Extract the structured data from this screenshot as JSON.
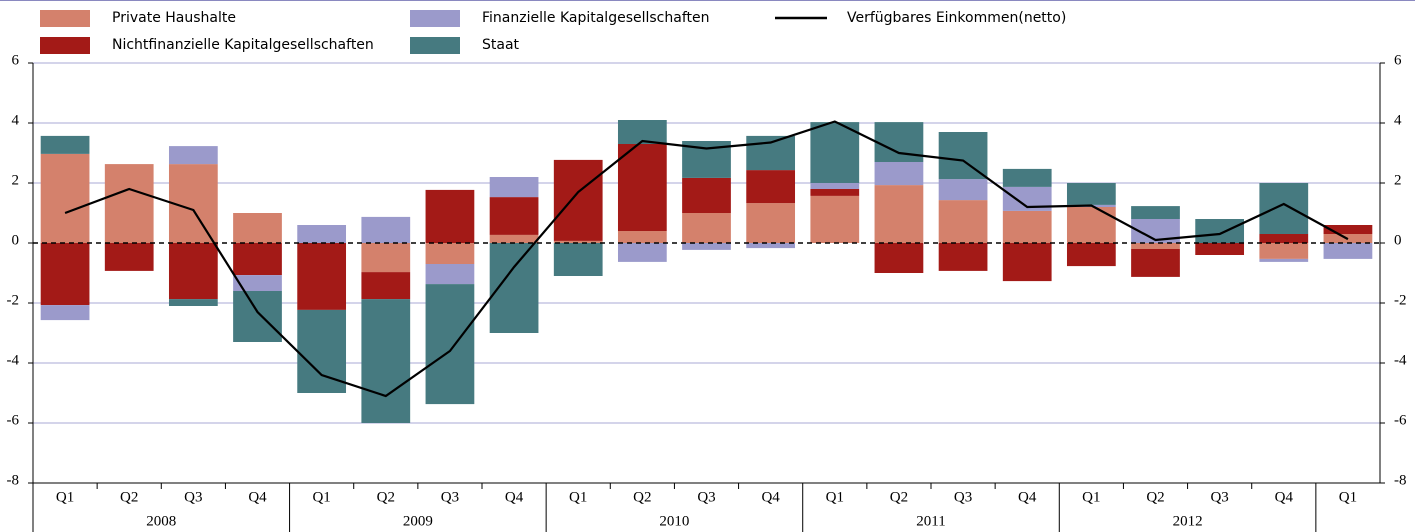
{
  "chart_data": {
    "type": "bar",
    "stacked": true,
    "categories": [
      "Q1",
      "Q2",
      "Q3",
      "Q4",
      "Q1",
      "Q2",
      "Q3",
      "Q4",
      "Q1",
      "Q2",
      "Q3",
      "Q4",
      "Q1",
      "Q2",
      "Q3",
      "Q4",
      "Q1",
      "Q2",
      "Q3",
      "Q4",
      "Q1"
    ],
    "year_groups": [
      "2008",
      "2009",
      "2010",
      "2011",
      "2012"
    ],
    "series": [
      {
        "name": "Private Haushalte",
        "color": "#d4816c",
        "values": [
          2.97,
          2.63,
          2.63,
          1.0,
          0,
          -0.97,
          -0.7,
          0.27,
          0.07,
          0.4,
          1.0,
          1.33,
          1.57,
          1.93,
          1.43,
          1.07,
          1.2,
          -0.2,
          0,
          -0.53,
          0.3
        ]
      },
      {
        "name": "Nichtfinanzielle Kapitalgesellschaften",
        "color": "#a31a17",
        "values": [
          -2.07,
          -0.93,
          -1.87,
          -1.07,
          -2.23,
          -0.9,
          1.77,
          1.26,
          2.7,
          2.9,
          1.17,
          1.1,
          0.23,
          -1.0,
          -0.93,
          -1.27,
          -0.77,
          -0.93,
          -0.4,
          0.3,
          0.3
        ]
      },
      {
        "name": "Finanzielle Kapitalgesellschaften",
        "color": "#9b9acb",
        "values": [
          -0.5,
          0,
          0.6,
          -0.53,
          0.6,
          0.87,
          -0.67,
          0.67,
          0,
          -0.63,
          -0.23,
          -0.17,
          0.2,
          0.77,
          0.7,
          0.8,
          0.07,
          0.8,
          0,
          -0.1,
          -0.53
        ]
      },
      {
        "name": "Staat",
        "color": "#467a80",
        "values": [
          0.6,
          0,
          -0.23,
          -1.7,
          -2.77,
          -4.13,
          -4.0,
          -3.0,
          -1.1,
          0.8,
          1.23,
          1.14,
          2.03,
          1.33,
          1.57,
          0.6,
          0.73,
          0.43,
          0.8,
          1.7,
          0
        ]
      },
      {
        "name": "Verfügbares Einkommen(netto)",
        "type": "line",
        "color": "#000000",
        "values": [
          1.0,
          1.8,
          1.1,
          -2.3,
          -4.4,
          -5.1,
          -3.6,
          -0.8,
          1.7,
          3.4,
          3.15,
          3.35,
          4.05,
          3.0,
          2.75,
          1.2,
          1.25,
          0.1,
          0.3,
          1.3,
          0.13
        ]
      }
    ],
    "ylim": [
      -8,
      6
    ],
    "yticks": [
      -8,
      -6,
      -4,
      -2,
      0,
      2,
      4,
      6
    ],
    "grid": true
  }
}
